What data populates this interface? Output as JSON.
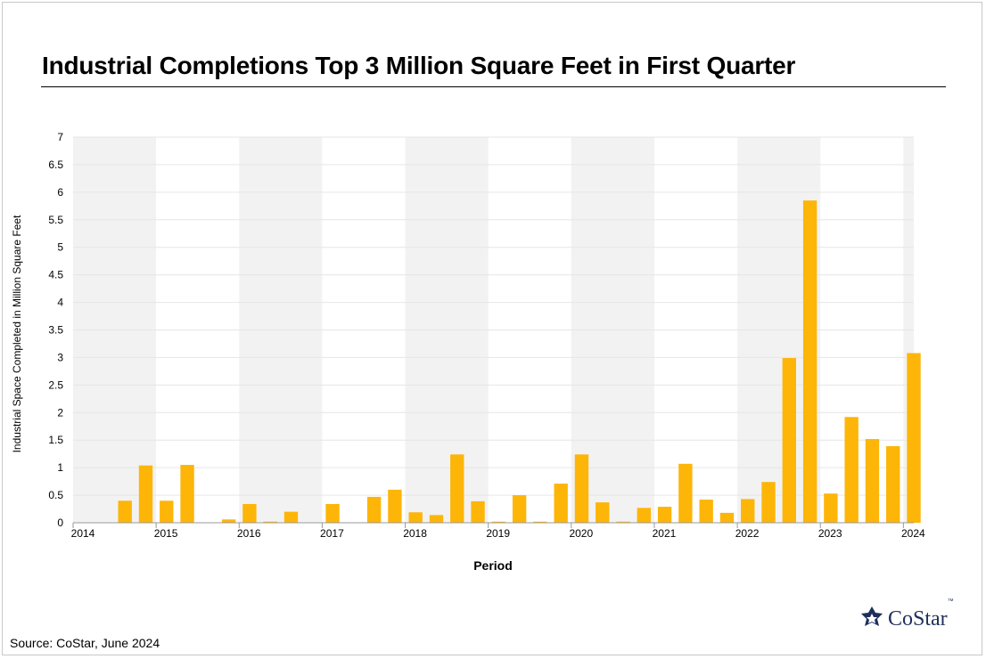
{
  "header": {
    "title": "Industrial Completions Top 3 Million Square Feet in First Quarter"
  },
  "footer": {
    "source": "Source: CoStar, June 2024"
  },
  "logo": {
    "text": "CoStar",
    "tm": "™",
    "color": "#1f2f5a"
  },
  "colors": {
    "bar": "#FDB508",
    "band": "#f2f2f2",
    "grid": "#e6e6e6",
    "axis": "#999999"
  },
  "chart_data": {
    "type": "bar",
    "title": "Industrial Completions Top 3 Million Square Feet in First Quarter",
    "xlabel": "Period",
    "ylabel": "Industrial Space Completed in Million Square Feet",
    "ylim": [
      0,
      7
    ],
    "yticks": [
      "0",
      "0.5",
      "1",
      "1.5",
      "2",
      "2.5",
      "3",
      "3.5",
      "4",
      "4.5",
      "5",
      "5.5",
      "6",
      "6.5",
      "7"
    ],
    "xtick_labels": [
      "2014",
      "2015",
      "2016",
      "2017",
      "2018",
      "2019",
      "2020",
      "2021",
      "2022",
      "2023",
      "2024"
    ],
    "grid": true,
    "alternating_year_bands": true,
    "categories": [
      "2014 Q1",
      "2014 Q2",
      "2014 Q3",
      "2014 Q4",
      "2015 Q1",
      "2015 Q2",
      "2015 Q3",
      "2015 Q4",
      "2016 Q1",
      "2016 Q2",
      "2016 Q3",
      "2016 Q4",
      "2017 Q1",
      "2017 Q2",
      "2017 Q3",
      "2017 Q4",
      "2018 Q1",
      "2018 Q2",
      "2018 Q3",
      "2018 Q4",
      "2019 Q1",
      "2019 Q2",
      "2019 Q3",
      "2019 Q4",
      "2020 Q1",
      "2020 Q2",
      "2020 Q3",
      "2020 Q4",
      "2021 Q1",
      "2021 Q2",
      "2021 Q3",
      "2021 Q4",
      "2022 Q1",
      "2022 Q2",
      "2022 Q3",
      "2022 Q4",
      "2023 Q1",
      "2023 Q2",
      "2023 Q3",
      "2023 Q4",
      "2024 Q1"
    ],
    "values": [
      0,
      0,
      0.4,
      1.04,
      0.4,
      1.05,
      0,
      0.06,
      0.34,
      0.02,
      0.2,
      0,
      0.34,
      0,
      0.47,
      0.6,
      0.19,
      0.14,
      1.24,
      0.39,
      0.02,
      0.5,
      0.02,
      0.71,
      1.24,
      0.37,
      0.02,
      0.27,
      0.29,
      1.07,
      0.42,
      0.18,
      0.43,
      0.74,
      2.99,
      5.85,
      0.53,
      1.92,
      1.52,
      1.39,
      3.08
    ]
  }
}
